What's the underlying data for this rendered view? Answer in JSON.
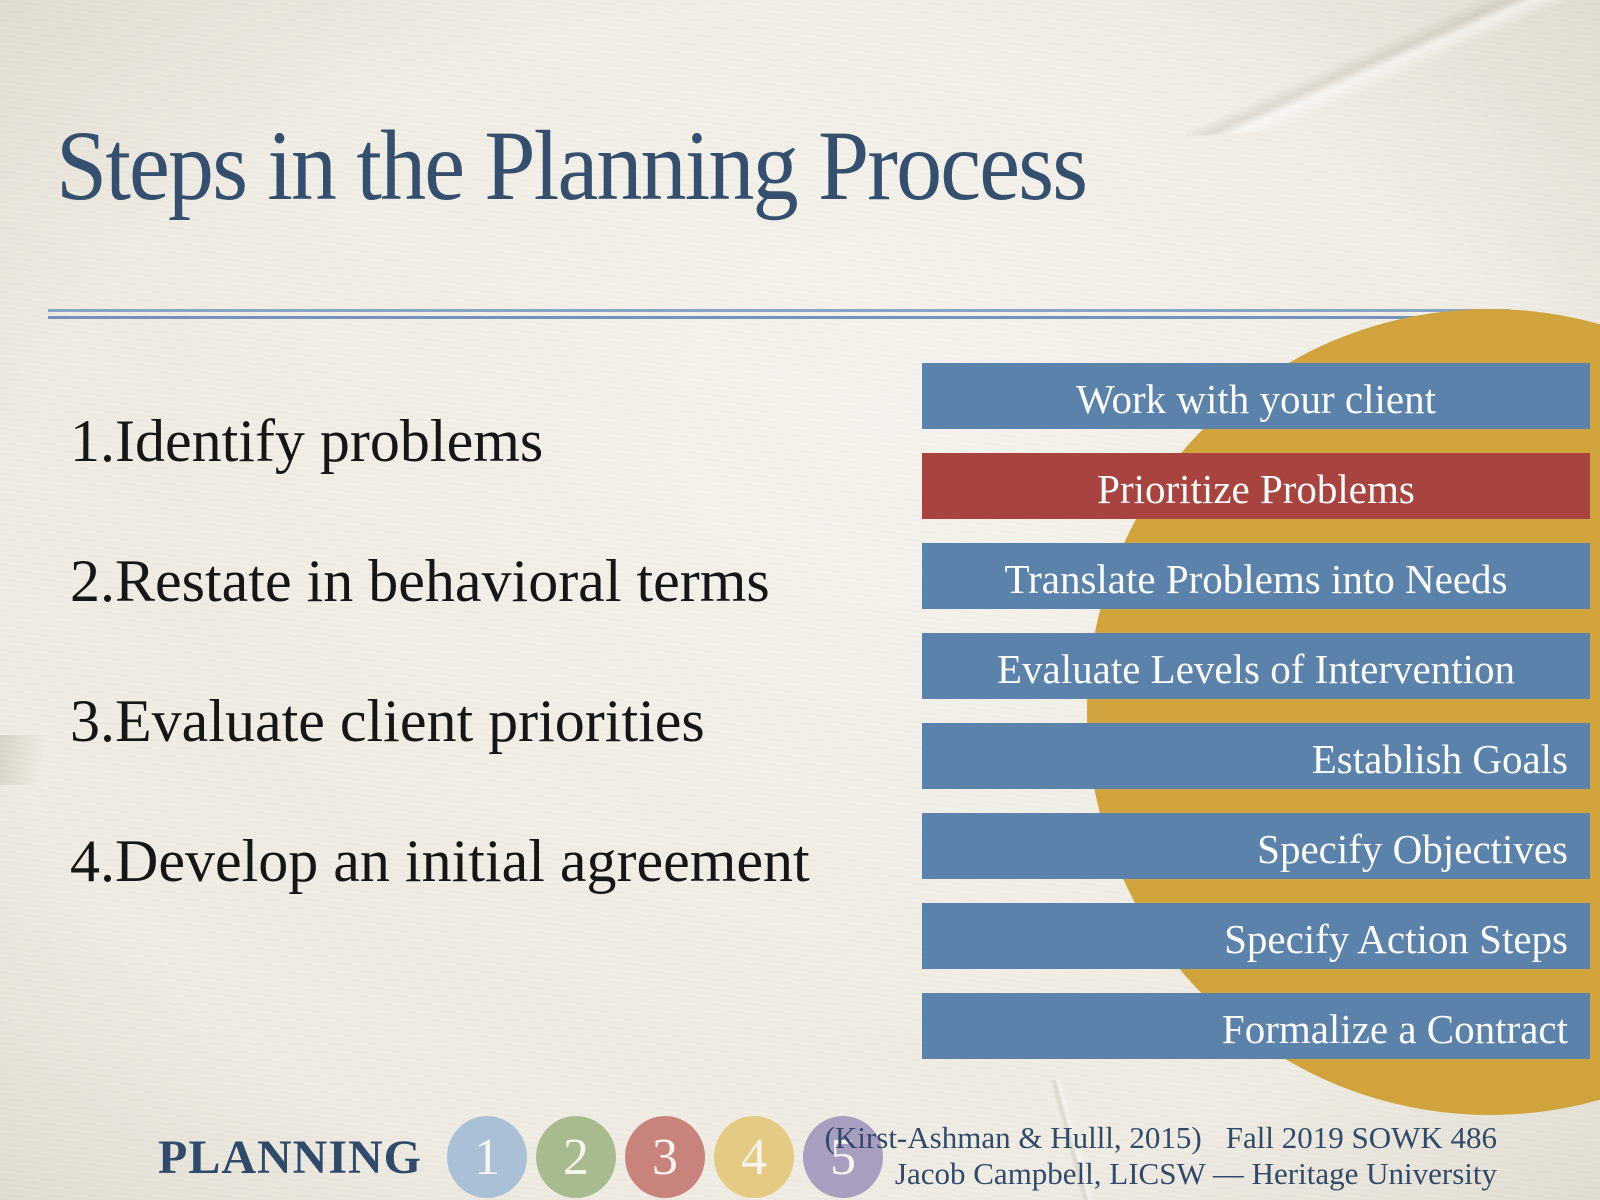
{
  "title": "Steps in the Planning Process",
  "steps": [
    {
      "number": "1.",
      "text": "Identify problems"
    },
    {
      "number": "2.",
      "text": "Restate in behavioral terms"
    },
    {
      "number": "3.",
      "text": "Evaluate client priorities"
    },
    {
      "number": "4.",
      "text": "Develop an initial agreement"
    }
  ],
  "process_bars": [
    {
      "label": "Work with your client",
      "color": "#5b82ab",
      "align": "center"
    },
    {
      "label": "Prioritize Problems",
      "color": "#a8433f",
      "align": "center"
    },
    {
      "label": "Translate Problems into Needs",
      "color": "#5b82ab",
      "align": "center"
    },
    {
      "label": "Evaluate Levels of Intervention",
      "color": "#5b82ab",
      "align": "center"
    },
    {
      "label": "Establish Goals",
      "color": "#5b82ab",
      "align": "right"
    },
    {
      "label": "Specify Objectives",
      "color": "#5b82ab",
      "align": "right"
    },
    {
      "label": "Specify Action Steps",
      "color": "#5b82ab",
      "align": "right"
    },
    {
      "label": "Formalize a Contract",
      "color": "#5b82ab",
      "align": "right"
    }
  ],
  "footer": {
    "section_label": "PLANNING",
    "step_indicators": [
      {
        "number": "1",
        "color": "#a9c0d6"
      },
      {
        "number": "2",
        "color": "#a7bb8e"
      },
      {
        "number": "3",
        "color": "#c8837d"
      },
      {
        "number": "4",
        "color": "#e4ca82"
      },
      {
        "number": "5",
        "color": "#a99ec0"
      }
    ],
    "citation": "(Kirst-Ashman & Hulll, 2015)",
    "course": "Fall 2019 SOWK 486",
    "author_line": "Jacob Campbell, LICSW — Heritage University"
  },
  "colors": {
    "background": "#f0ece3",
    "title": "#35506f",
    "rule": "#87a3c6",
    "accent_circle": "#d1a33d",
    "bar_blue": "#5b82ab",
    "bar_red": "#a8433f",
    "bar_text": "#fdfdfb",
    "list_text": "#161616",
    "footer_text": "#2f4a6b"
  }
}
